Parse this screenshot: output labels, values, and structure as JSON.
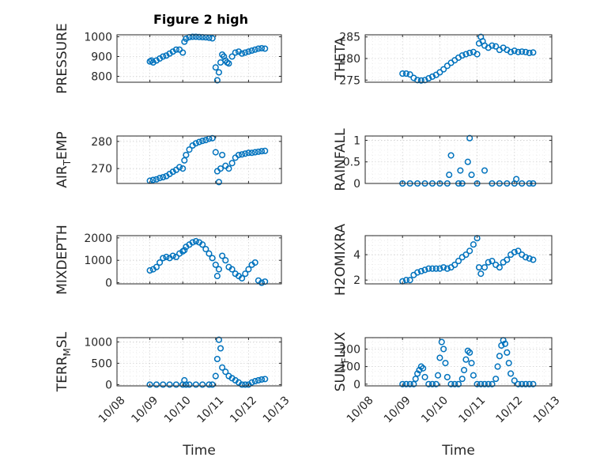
{
  "chart_data": [
    {
      "type": "scatter",
      "title": "Figure 2 high",
      "ylabel": "PRESSURE",
      "ylim": [
        770,
        1010
      ],
      "yticks": [
        800,
        900,
        1000
      ],
      "xlim": [
        0,
        5
      ],
      "x": [
        1.0,
        1.05,
        1.1,
        1.2,
        1.3,
        1.4,
        1.5,
        1.6,
        1.7,
        1.8,
        1.9,
        2.0,
        2.05,
        2.1,
        2.2,
        2.3,
        2.4,
        2.5,
        2.6,
        2.7,
        2.8,
        2.9,
        3.0,
        3.05,
        3.1,
        3.15,
        3.2,
        3.25,
        3.3,
        3.35,
        3.4,
        3.5,
        3.6,
        3.7,
        3.8,
        3.9,
        4.0,
        4.1,
        4.2,
        4.3,
        4.4,
        4.5
      ],
      "y": [
        875,
        880,
        870,
        880,
        890,
        900,
        905,
        915,
        925,
        935,
        935,
        920,
        975,
        990,
        998,
        1000,
        1000,
        999,
        998,
        997,
        995,
        992,
        845,
        780,
        820,
        870,
        910,
        900,
        880,
        870,
        865,
        900,
        920,
        925,
        915,
        920,
        925,
        930,
        935,
        940,
        942,
        940
      ]
    },
    {
      "type": "scatter",
      "ylabel": "THETA",
      "ylim": [
        274.5,
        285.5
      ],
      "yticks": [
        275,
        280,
        285
      ],
      "xlim": [
        0,
        5
      ],
      "x": [
        1.0,
        1.1,
        1.2,
        1.3,
        1.4,
        1.5,
        1.6,
        1.7,
        1.8,
        1.9,
        2.0,
        2.1,
        2.2,
        2.3,
        2.4,
        2.5,
        2.6,
        2.7,
        2.8,
        2.9,
        3.0,
        3.05,
        3.1,
        3.15,
        3.2,
        3.3,
        3.4,
        3.5,
        3.6,
        3.7,
        3.8,
        3.9,
        4.0,
        4.1,
        4.2,
        4.3,
        4.4,
        4.5
      ],
      "y": [
        276.5,
        276.5,
        276.3,
        275.5,
        275.0,
        274.9,
        275.0,
        275.4,
        275.8,
        276.2,
        276.8,
        277.5,
        278.3,
        279.0,
        279.6,
        280.2,
        280.7,
        281.0,
        281.3,
        281.5,
        281.0,
        283.5,
        285.0,
        284.0,
        283.0,
        282.5,
        283.0,
        282.8,
        282.0,
        282.5,
        282.0,
        281.5,
        281.8,
        281.5,
        281.6,
        281.5,
        281.3,
        281.4
      ]
    },
    {
      "type": "scatter",
      "ylabel": "AIR_TEMP",
      "ylim": [
        264.5,
        282
      ],
      "yticks": [
        270,
        280
      ],
      "xlim": [
        0,
        5
      ],
      "x": [
        1.0,
        1.1,
        1.2,
        1.3,
        1.4,
        1.5,
        1.6,
        1.7,
        1.8,
        1.9,
        2.0,
        2.05,
        2.1,
        2.2,
        2.3,
        2.4,
        2.5,
        2.6,
        2.7,
        2.8,
        2.9,
        3.0,
        3.05,
        3.1,
        3.15,
        3.2,
        3.3,
        3.4,
        3.5,
        3.6,
        3.7,
        3.8,
        3.9,
        4.0,
        4.1,
        4.2,
        4.3,
        4.4,
        4.5
      ],
      "y": [
        265.5,
        265.8,
        266.0,
        266.5,
        266.8,
        267.2,
        268.0,
        268.8,
        269.5,
        270.5,
        270.0,
        273.0,
        275.0,
        277.0,
        278.5,
        279.3,
        279.8,
        280.2,
        280.5,
        281.0,
        281.2,
        276.0,
        269.0,
        265.0,
        270.0,
        275.0,
        271.0,
        270.0,
        272.0,
        274.0,
        275.0,
        275.2,
        275.5,
        275.8,
        275.8,
        276.0,
        276.2,
        276.4,
        276.5
      ]
    },
    {
      "type": "scatter",
      "ylabel": "RAINFALL",
      "ylim": [
        0,
        1.1
      ],
      "yticks": [
        0,
        0.5,
        1
      ],
      "xlim": [
        0,
        5
      ],
      "x": [
        1.0,
        1.2,
        1.4,
        1.6,
        1.8,
        2.0,
        2.2,
        2.25,
        2.3,
        2.5,
        2.55,
        2.6,
        2.75,
        2.8,
        2.85,
        3.0,
        3.2,
        3.4,
        3.6,
        3.8,
        4.0,
        4.05,
        4.2,
        4.4,
        4.5
      ],
      "y": [
        0,
        0,
        0,
        0,
        0,
        0,
        0,
        0.2,
        0.65,
        0,
        0.3,
        0,
        0.5,
        1.05,
        0.2,
        0,
        0.3,
        0,
        0,
        0,
        0,
        0.1,
        0,
        0,
        0
      ]
    },
    {
      "type": "scatter",
      "ylabel": "MIXDEPTH",
      "ylim": [
        -50,
        2100
      ],
      "yticks": [
        0,
        1000,
        2000
      ],
      "xlim": [
        0,
        5
      ],
      "x": [
        1.0,
        1.1,
        1.2,
        1.3,
        1.4,
        1.5,
        1.6,
        1.7,
        1.8,
        1.9,
        2.0,
        2.05,
        2.1,
        2.2,
        2.3,
        2.4,
        2.5,
        2.6,
        2.7,
        2.8,
        2.9,
        3.0,
        3.05,
        3.1,
        3.2,
        3.3,
        3.4,
        3.5,
        3.6,
        3.7,
        3.8,
        3.9,
        4.0,
        4.1,
        4.2,
        4.3,
        4.4,
        4.5
      ],
      "y": [
        550,
        600,
        700,
        900,
        1100,
        1150,
        1100,
        1200,
        1150,
        1300,
        1400,
        1450,
        1600,
        1700,
        1800,
        1850,
        1800,
        1700,
        1500,
        1300,
        1100,
        800,
        300,
        600,
        1200,
        1000,
        700,
        600,
        400,
        300,
        200,
        400,
        600,
        800,
        900,
        100,
        0,
        50
      ]
    },
    {
      "type": "scatter",
      "ylabel": "H2OMIXRA",
      "ylim": [
        1.7,
        5.5
      ],
      "yticks": [
        2,
        4
      ],
      "xlim": [
        0,
        5
      ],
      "x": [
        1.0,
        1.1,
        1.2,
        1.3,
        1.4,
        1.5,
        1.6,
        1.7,
        1.8,
        1.9,
        2.0,
        2.1,
        2.2,
        2.3,
        2.4,
        2.5,
        2.6,
        2.7,
        2.8,
        2.9,
        3.0,
        3.05,
        3.1,
        3.2,
        3.3,
        3.4,
        3.5,
        3.6,
        3.7,
        3.8,
        3.9,
        4.0,
        4.1,
        4.2,
        4.3,
        4.4,
        4.5
      ],
      "y": [
        1.9,
        2.0,
        2.0,
        2.4,
        2.6,
        2.7,
        2.8,
        2.9,
        2.9,
        2.9,
        2.9,
        3.0,
        2.9,
        3.0,
        3.2,
        3.5,
        3.8,
        4.0,
        4.3,
        4.8,
        5.3,
        3.0,
        2.5,
        3.0,
        3.4,
        3.5,
        3.2,
        3.0,
        3.4,
        3.6,
        4.0,
        4.2,
        4.3,
        4.0,
        3.8,
        3.7,
        3.6
      ]
    },
    {
      "type": "scatter",
      "ylabel": "TERR_MSL",
      "ylim": [
        -30,
        1100
      ],
      "yticks": [
        0,
        500,
        1000
      ],
      "xlim": [
        0,
        5
      ],
      "x": [
        1.0,
        1.2,
        1.4,
        1.6,
        1.8,
        2.0,
        2.05,
        2.1,
        2.2,
        2.4,
        2.6,
        2.8,
        2.9,
        3.0,
        3.05,
        3.1,
        3.15,
        3.2,
        3.3,
        3.4,
        3.5,
        3.6,
        3.7,
        3.8,
        3.9,
        4.0,
        4.1,
        4.2,
        4.3,
        4.4,
        4.5
      ],
      "y": [
        0,
        0,
        0,
        0,
        0,
        0,
        100,
        0,
        0,
        0,
        0,
        0,
        0,
        200,
        600,
        1050,
        850,
        400,
        300,
        200,
        150,
        100,
        50,
        0,
        0,
        0,
        50,
        80,
        100,
        120,
        130
      ]
    },
    {
      "type": "scatter",
      "ylabel": "SUN_FLUX",
      "ylim": [
        -10,
        265
      ],
      "yticks": [
        0,
        100,
        200
      ],
      "xlim": [
        0,
        5
      ],
      "x": [
        1.0,
        1.1,
        1.2,
        1.3,
        1.35,
        1.4,
        1.45,
        1.5,
        1.55,
        1.6,
        1.7,
        1.8,
        1.9,
        1.95,
        2.0,
        2.05,
        2.1,
        2.15,
        2.2,
        2.3,
        2.4,
        2.5,
        2.6,
        2.65,
        2.7,
        2.75,
        2.8,
        2.85,
        2.9,
        3.0,
        3.1,
        3.2,
        3.3,
        3.4,
        3.5,
        3.55,
        3.6,
        3.65,
        3.7,
        3.75,
        3.8,
        3.85,
        3.9,
        4.0,
        4.1,
        4.2,
        4.3,
        4.4,
        4.5
      ],
      "y": [
        0,
        0,
        0,
        0,
        30,
        60,
        80,
        100,
        90,
        40,
        0,
        0,
        0,
        50,
        150,
        240,
        200,
        120,
        40,
        0,
        0,
        0,
        30,
        80,
        140,
        190,
        180,
        120,
        50,
        0,
        0,
        0,
        0,
        0,
        30,
        100,
        160,
        220,
        250,
        230,
        180,
        120,
        60,
        20,
        0,
        0,
        0,
        0,
        0
      ]
    }
  ],
  "axes": {
    "xticks": [
      "10/08",
      "10/09",
      "10/10",
      "10/11",
      "10/12",
      "10/13"
    ],
    "xlabel": "Time",
    "ylabels": [
      {
        "main": "PRESSURE",
        "sub": ""
      },
      {
        "main": "THETA",
        "sub": ""
      },
      {
        "main": "AIR",
        "sub": "T",
        "tail": "EMP"
      },
      {
        "main": "RAINFALL",
        "sub": ""
      },
      {
        "main": "MIXDEPTH",
        "sub": ""
      },
      {
        "main": "H2OMIXRA",
        "sub": ""
      },
      {
        "main": "TERR",
        "sub": "M",
        "tail": "SL"
      },
      {
        "main": "SUN",
        "sub": "F",
        "tail": "LUX"
      }
    ]
  },
  "colors": {
    "marker": "#0072BD",
    "axis": "#262626"
  }
}
